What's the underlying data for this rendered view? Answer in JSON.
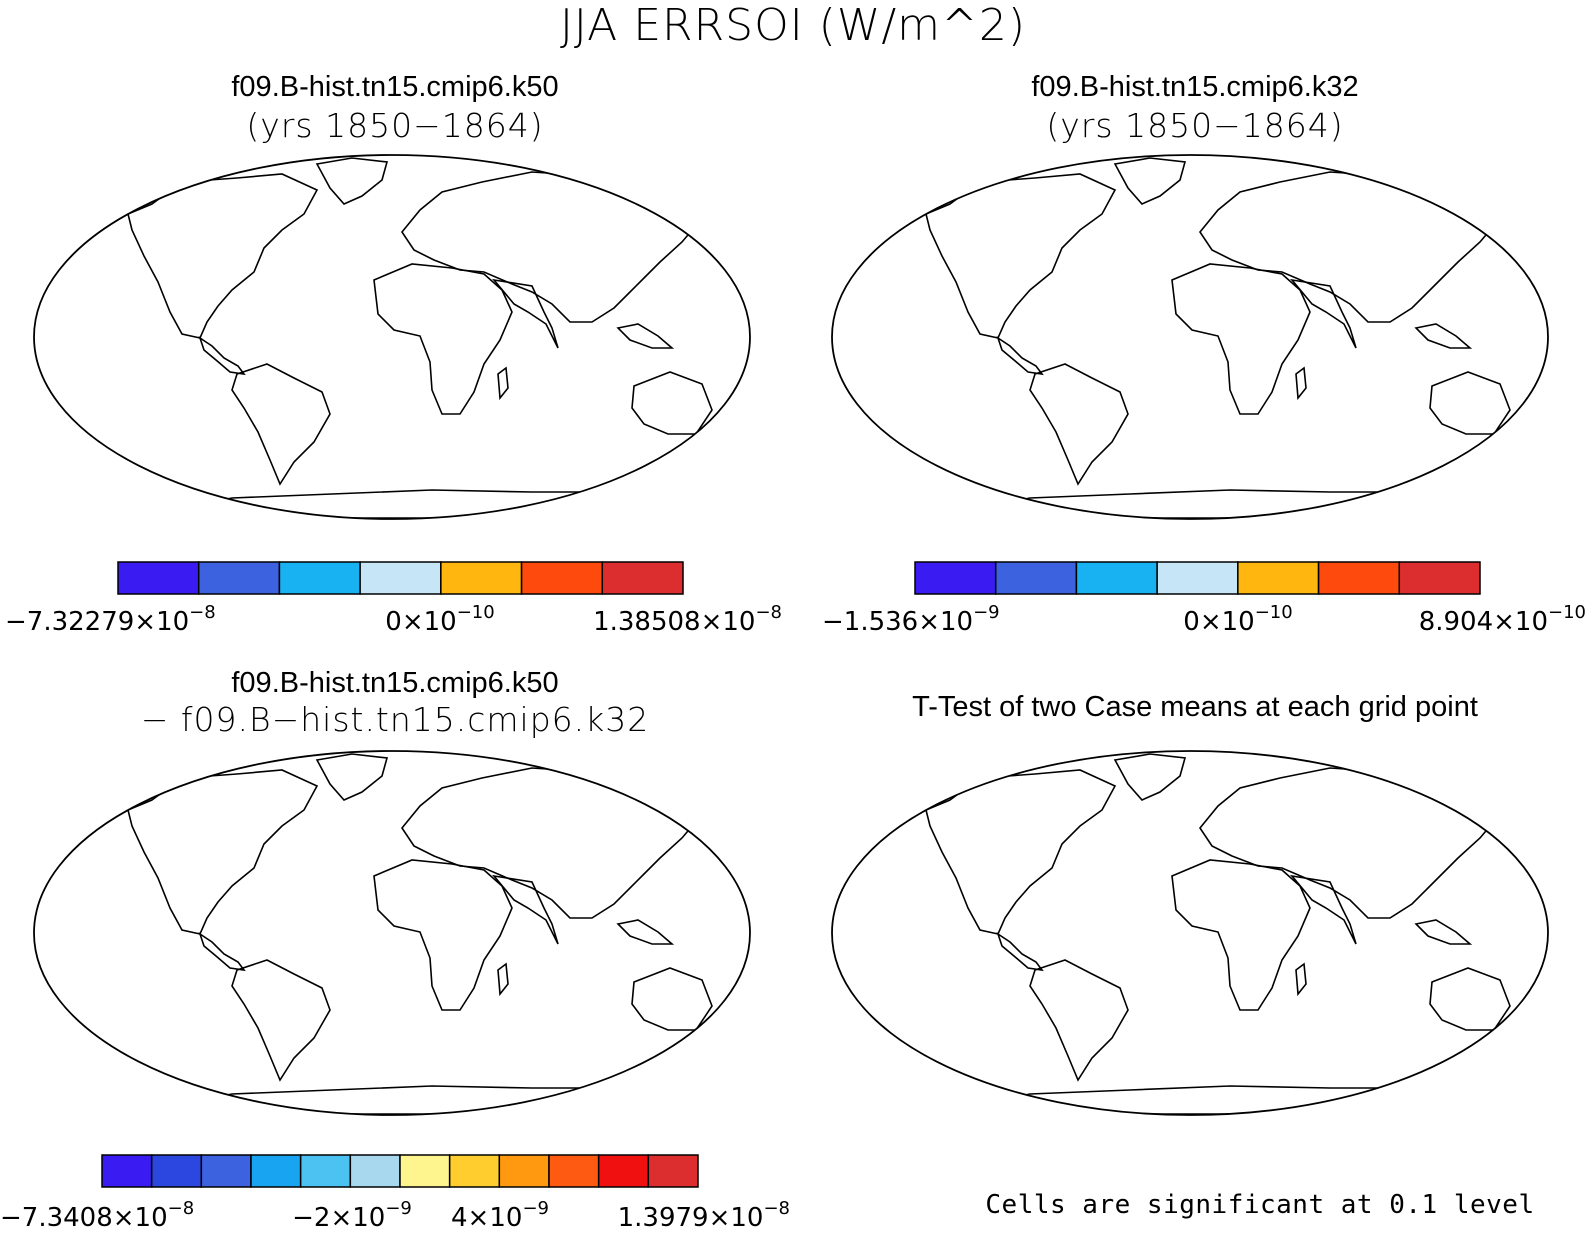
{
  "title": "JJA ERRSOI (W/m^2)",
  "panels": [
    {
      "name": "case1",
      "title": "f09.B-hist.tn15.cmip6.k50",
      "subtitle": "(yrs 1850−1864)",
      "colorbar": {
        "colors": [
          "#3a1cf2",
          "#3d62e0",
          "#18b2f2",
          "#c6e6f7",
          "#ffb60f",
          "#ff4a0e",
          "#dc2e2e"
        ],
        "labels": [
          {
            "mantissa": "−7.32279×10",
            "exp": "−8",
            "position": "left"
          },
          {
            "mantissa": "0×10",
            "exp": "−10",
            "position": "center"
          },
          {
            "mantissa": "1.38508×10",
            "exp": "−8",
            "position": "right"
          }
        ]
      }
    },
    {
      "name": "case2",
      "title": "f09.B-hist.tn15.cmip6.k32",
      "subtitle": "(yrs 1850−1864)",
      "colorbar": {
        "colors": [
          "#3a1cf2",
          "#3d62e0",
          "#18b2f2",
          "#c6e6f7",
          "#ffb60f",
          "#ff4a0e",
          "#dc2e2e"
        ],
        "labels": [
          {
            "mantissa": "−1.536×10",
            "exp": "−9",
            "position": "left"
          },
          {
            "mantissa": "0×10",
            "exp": "−10",
            "position": "center"
          },
          {
            "mantissa": "8.904×10",
            "exp": "−10",
            "position": "right"
          }
        ]
      }
    },
    {
      "name": "difference",
      "title": "f09.B-hist.tn15.cmip6.k50",
      "subtitle": "− f09.B−hist.tn15.cmip6.k32",
      "colorbar": {
        "colors": [
          "#3a1cf2",
          "#2c46e0",
          "#3d62e0",
          "#18a4f0",
          "#4cc2f2",
          "#a8d8ee",
          "#fef58f",
          "#ffce2e",
          "#ff9a10",
          "#ff5a12",
          "#f01010",
          "#dc2e2e"
        ],
        "labels": [
          {
            "mantissa": "−7.3408×10",
            "exp": "−8",
            "position": "left"
          },
          {
            "mantissa": "−2×10",
            "exp": "−9",
            "position": "c1"
          },
          {
            "mantissa": "4×10",
            "exp": "−9",
            "position": "c2"
          },
          {
            "mantissa": "1.3979×10",
            "exp": "−8",
            "position": "right"
          }
        ]
      }
    },
    {
      "name": "ttest",
      "title": "T-Test of two Case means at each grid point",
      "note": "Cells are significant at 0.1 level"
    }
  ]
}
